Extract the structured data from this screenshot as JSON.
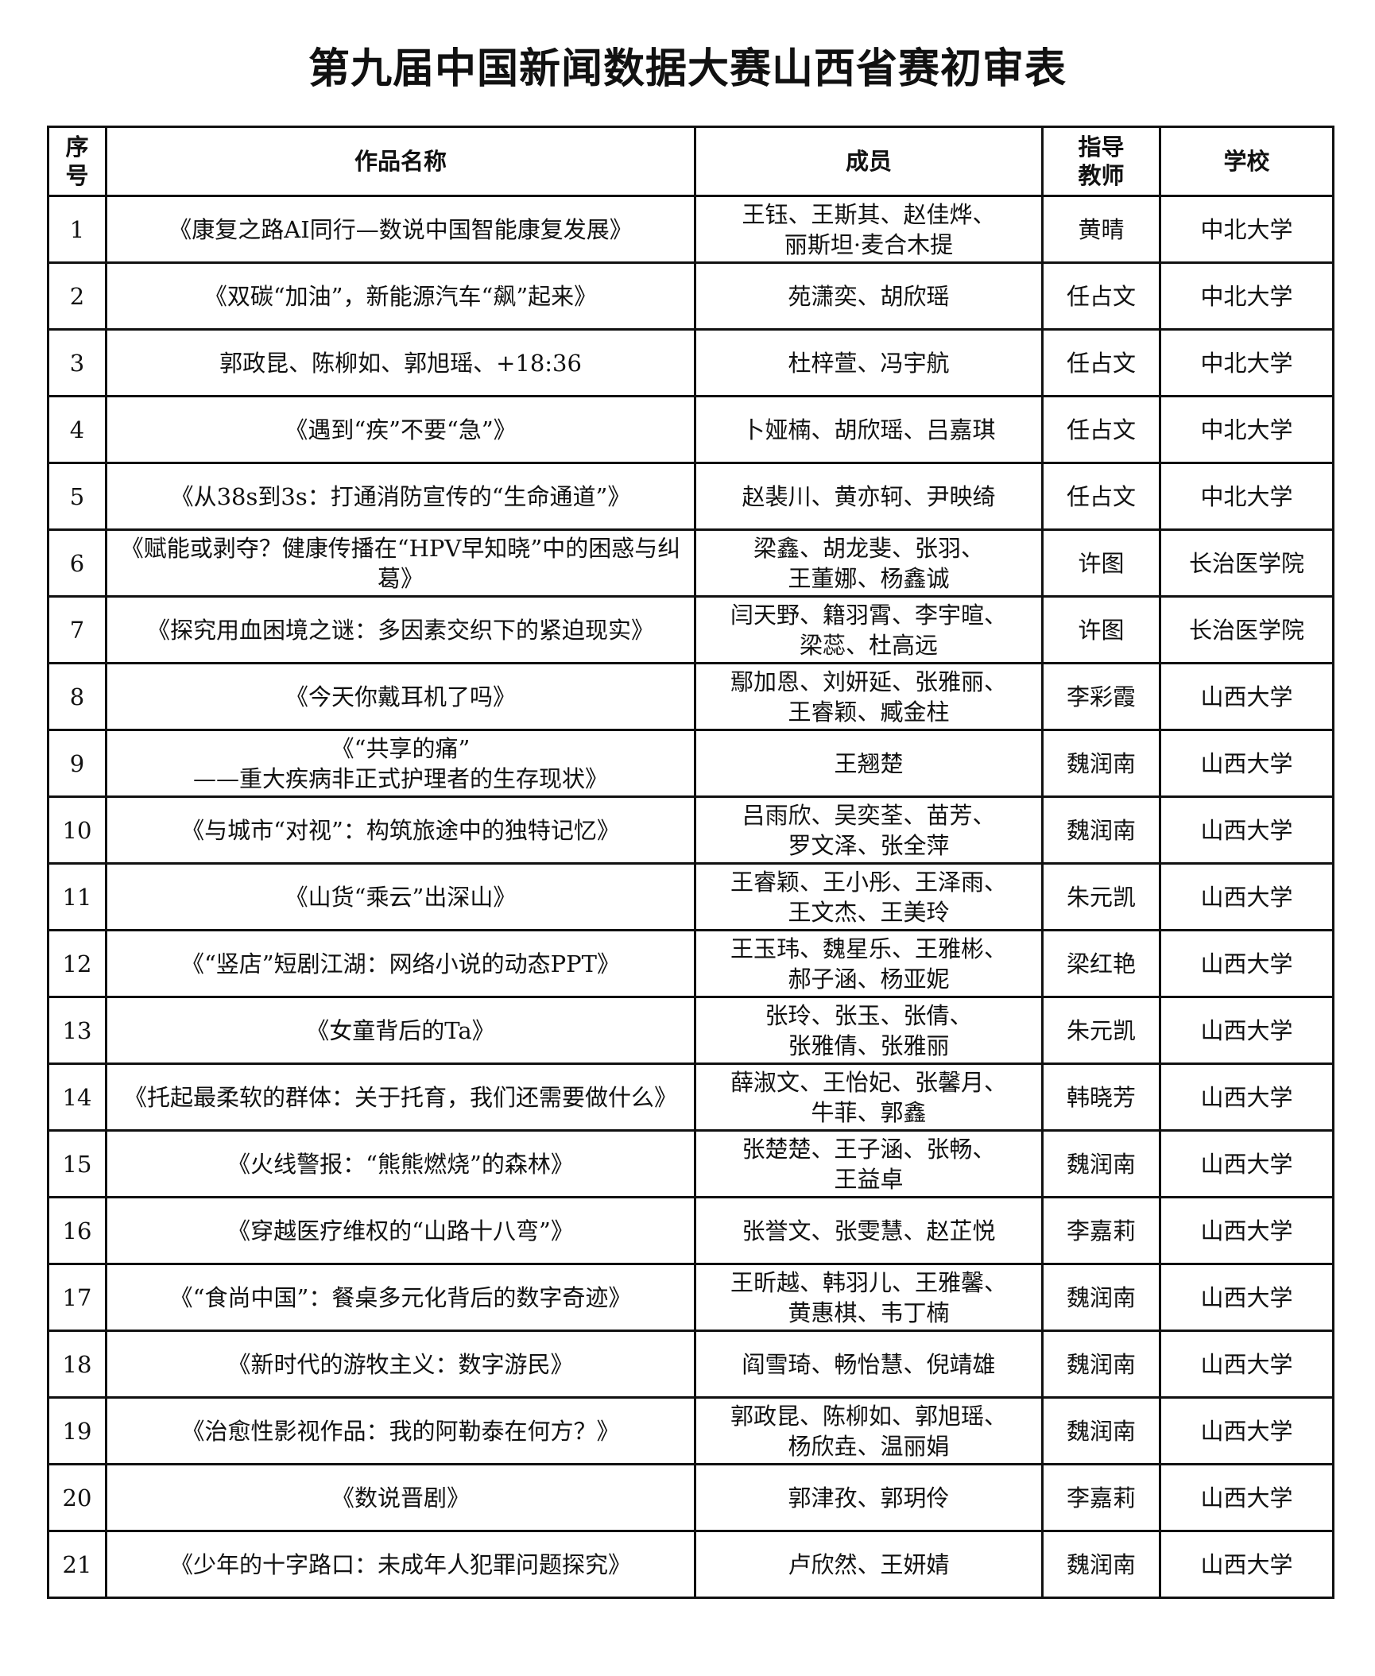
{
  "title": "第九届中国新闻数据大赛山西省赛初审表",
  "headers": {
    "index": "序\n号",
    "work": "作品名称",
    "members": "成员",
    "advisor": "指导\n教师",
    "school": "学校"
  },
  "rows": [
    {
      "index": "1",
      "work": "《康复之路AI同行—数说中国智能康复发展》",
      "members": "王钰、王斯其、赵佳烨、\n丽斯坦·麦合木提",
      "advisor": "黄晴",
      "school": "中北大学"
    },
    {
      "index": "2",
      "work": "《双碳“加油”，新能源汽车“飙”起来》",
      "members": "苑潇奕、胡欣瑶",
      "advisor": "任占文",
      "school": "中北大学"
    },
    {
      "index": "3",
      "work": "郭政昆、陈柳如、郭旭瑶、+18:36",
      "members": "杜梓萱、冯宇航",
      "advisor": "任占文",
      "school": "中北大学"
    },
    {
      "index": "4",
      "work": "《遇到“疾”不要“急”》",
      "members": "卜娅楠、胡欣瑶、吕嘉琪",
      "advisor": "任占文",
      "school": "中北大学"
    },
    {
      "index": "5",
      "work": "《从38s到3s：打通消防宣传的“生命通道”》",
      "members": "赵裴川、黄亦轲、尹映绮",
      "advisor": "任占文",
      "school": "中北大学"
    },
    {
      "index": "6",
      "work": "《赋能或剥夺？健康传播在“HPV早知晓”中的困惑与纠葛》",
      "members": "梁鑫、胡龙斐、张羽、\n王董娜、杨鑫诚",
      "advisor": "许图",
      "school": "长治医学院"
    },
    {
      "index": "7",
      "work": "《探究用血困境之谜：多因素交织下的紧迫现实》",
      "members": "闫天野、籍羽霄、李宇暄、\n梁蕊、杜高远",
      "advisor": "许图",
      "school": "长治医学院"
    },
    {
      "index": "8",
      "work": "《今天你戴耳机了吗》",
      "members": "鄢加恩、刘妍延、张雅丽、\n王睿颖、臧金柱",
      "advisor": "李彩霞",
      "school": "山西大学"
    },
    {
      "index": "9",
      "work": "《“共享的痛”\n——重大疾病非正式护理者的生存现状》",
      "members": "王翘楚",
      "advisor": "魏润南",
      "school": "山西大学"
    },
    {
      "index": "10",
      "work": "《与城市“对视”：构筑旅途中的独特记忆》",
      "members": "吕雨欣、吴奕荃、苗芳、\n罗文泽、张全萍",
      "advisor": "魏润南",
      "school": "山西大学"
    },
    {
      "index": "11",
      "work": "《山货“乘云”出深山》",
      "members": "王睿颖、王小彤、王泽雨、\n王文杰、王美玲",
      "advisor": "朱元凯",
      "school": "山西大学"
    },
    {
      "index": "12",
      "work": "《“竖店”短剧江湖：网络小说的动态PPT》",
      "members": "王玉玮、魏星乐、王雅彬、\n郝子涵、杨亚妮",
      "advisor": "梁红艳",
      "school": "山西大学"
    },
    {
      "index": "13",
      "work": "《女童背后的Ta》",
      "members": "张玲、张玉、张倩、\n张雅倩、张雅丽",
      "advisor": "朱元凯",
      "school": "山西大学"
    },
    {
      "index": "14",
      "work": "《托起最柔软的群体：关于托育，我们还需要做什么》",
      "members": "薛淑文、王怡妃、张馨月、\n牛菲、郭鑫",
      "advisor": "韩晓芳",
      "school": "山西大学"
    },
    {
      "index": "15",
      "work": "《火线警报：“熊熊燃烧”的森林》",
      "members": "张楚楚、王子涵、张畅、\n王益卓",
      "advisor": "魏润南",
      "school": "山西大学"
    },
    {
      "index": "16",
      "work": "《穿越医疗维权的“山路十八弯”》",
      "members": "张誉文、张雯慧、赵芷悦",
      "advisor": "李嘉莉",
      "school": "山西大学"
    },
    {
      "index": "17",
      "work": "《“食尚中国”：餐桌多元化背后的数字奇迹》",
      "members": "王昕越、韩羽儿、王雅馨、\n黄惠棋、韦丁楠",
      "advisor": "魏润南",
      "school": "山西大学"
    },
    {
      "index": "18",
      "work": "《新时代的游牧主义：数字游民》",
      "members": "阎雪琦、畅怡慧、倪靖雄",
      "advisor": "魏润南",
      "school": "山西大学"
    },
    {
      "index": "19",
      "work": "《治愈性影视作品：我的阿勒泰在何方？》",
      "members": "郭政昆、陈柳如、郭旭瑶、\n杨欣垚、温丽娟",
      "advisor": "魏润南",
      "school": "山西大学"
    },
    {
      "index": "20",
      "work": "《数说晋剧》",
      "members": "郭津孜、郭玥伶",
      "advisor": "李嘉莉",
      "school": "山西大学"
    },
    {
      "index": "21",
      "work": "《少年的十字路口：未成年人犯罪问题探究》",
      "members": "卢欣然、王妍婧",
      "advisor": "魏润南",
      "school": "山西大学"
    }
  ]
}
